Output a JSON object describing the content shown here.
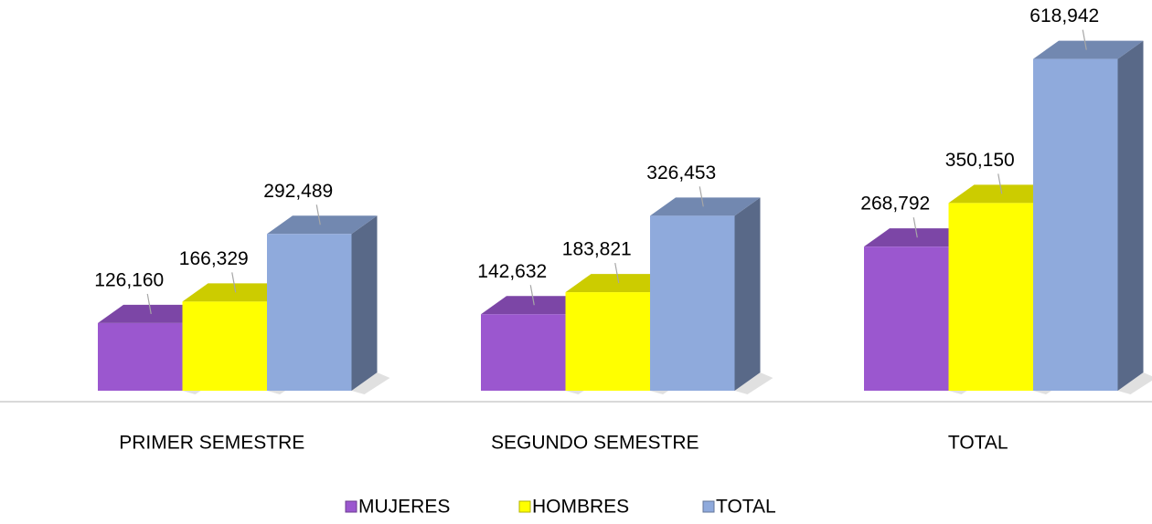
{
  "chart_data": {
    "type": "bar3d",
    "categories": [
      "PRIMER SEMESTRE",
      "SEGUNDO SEMESTRE",
      "TOTAL"
    ],
    "series": [
      {
        "name": "MUJERES",
        "color": "#9b57cf",
        "values": [
          126160,
          142632,
          268792
        ],
        "value_labels": [
          "126,160",
          "142,632",
          "268,792"
        ]
      },
      {
        "name": "HOMBRES",
        "color": "#ffff00",
        "values": [
          166329,
          183821,
          350150
        ],
        "value_labels": [
          "166,329",
          "183,821",
          "350,150"
        ]
      },
      {
        "name": "TOTAL",
        "color": "#8faadc",
        "values": [
          292489,
          326453,
          618942
        ],
        "value_labels": [
          "292,489",
          "326,453",
          "618,942"
        ]
      }
    ],
    "ylim": [
      0,
      700000
    ],
    "legend": "bottom"
  }
}
